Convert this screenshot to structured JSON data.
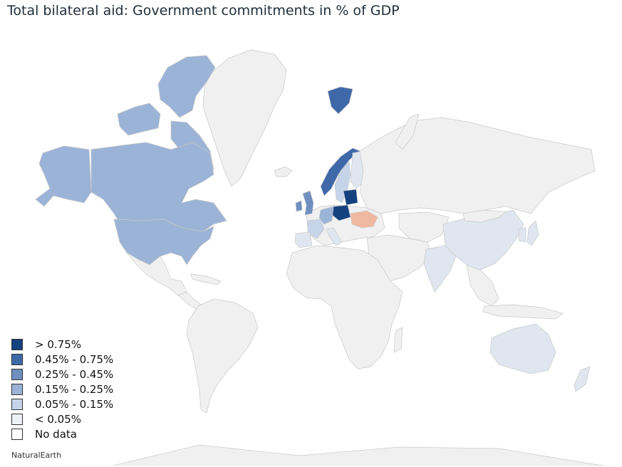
{
  "title": "Total bilateral aid: Government commitments in % of GDP",
  "source": "NaturalEarth",
  "colors": {
    "no_data": "#f0f0f0",
    "lt_005": "#dfe6ef",
    "c_005_015": "#c5d4e8",
    "c_015_025": "#9bb3d6",
    "c_025_045": "#6f8fc0",
    "c_045_075": "#3f68a8",
    "gt_075": "#14427f",
    "highlight": "#f0b8a0",
    "border": "#c8c8c8"
  },
  "legend": [
    {
      "label": "> 0.75%",
      "color": "#14427f"
    },
    {
      "label": "0.45% - 0.75%",
      "color": "#3f68a8"
    },
    {
      "label": "0.25% - 0.45%",
      "color": "#6f8fc0"
    },
    {
      "label": "0.15% - 0.25%",
      "color": "#9bb3d6"
    },
    {
      "label": "0.05% - 0.15%",
      "color": "#c5d4e8"
    },
    {
      "label": "< 0.05%",
      "color": "#eef1f6"
    },
    {
      "label": "No data",
      "color": "#ffffff"
    }
  ]
}
